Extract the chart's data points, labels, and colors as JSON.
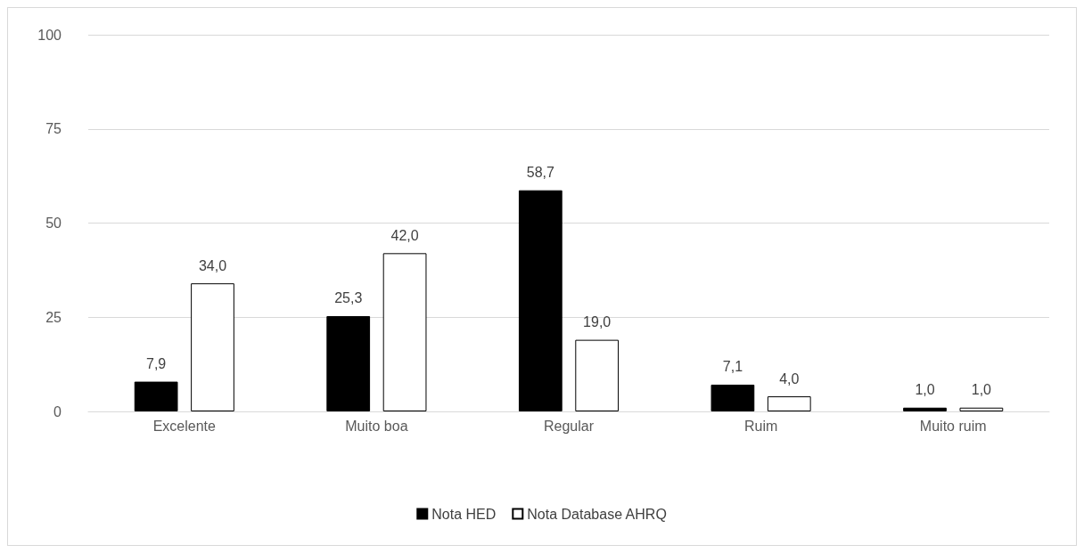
{
  "chart_data": {
    "type": "bar",
    "categories": [
      "Excelente",
      "Muito boa",
      "Regular",
      "Ruim",
      "Muito ruim"
    ],
    "series": [
      {
        "name": "Nota HED",
        "color": "#000000",
        "values": [
          7.9,
          25.3,
          58.7,
          7.1,
          1.0
        ],
        "value_labels": [
          "7,9",
          "25,3",
          "58,7",
          "7,1",
          "1,0"
        ]
      },
      {
        "name": "Nota Database AHRQ",
        "color": "#ffffff",
        "values": [
          34.0,
          42.0,
          19.0,
          4.0,
          1.0
        ],
        "value_labels": [
          "34,0",
          "42,0",
          "19,0",
          "4,0",
          "1,0"
        ]
      }
    ],
    "ylim": [
      0,
      100
    ],
    "yticks": [
      0,
      25,
      50,
      75,
      100
    ],
    "grid": "y",
    "legend": "bottom"
  }
}
